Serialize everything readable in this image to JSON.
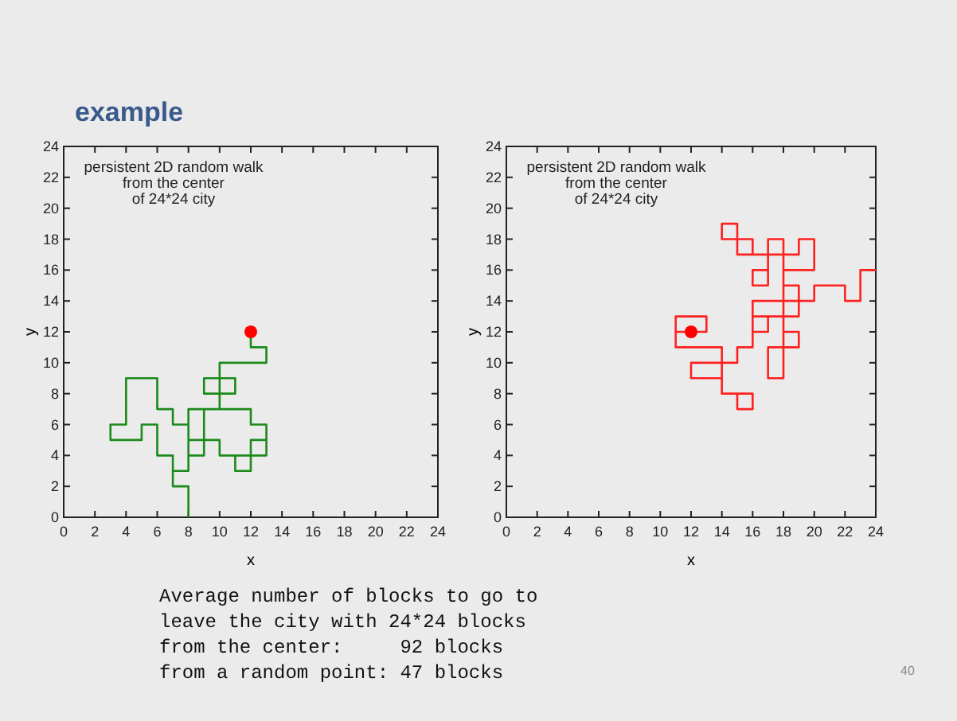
{
  "chart_data": [
    {
      "type": "line",
      "title": "example",
      "xlabel": "x",
      "ylabel": "y",
      "xlim": [
        0,
        24
      ],
      "ylim": [
        0,
        24
      ],
      "xticks": [
        0,
        2,
        4,
        6,
        8,
        10,
        12,
        14,
        16,
        18,
        20,
        22,
        24
      ],
      "yticks": [
        0,
        2,
        4,
        6,
        8,
        10,
        12,
        14,
        16,
        18,
        20,
        22,
        24
      ],
      "grid": false,
      "annotations": [
        "persistent 2D random walk\nfrom the center\nof 24*24 city",
        "Average number of blocks to go to\nleave the city with 24*24 blocks\nfrom the center:     92 blocks\nfrom a random point: 47 blocks",
        "40"
      ],
      "series": [
        {
          "color": "#1a8a1a",
          "marker": "none",
          "x": [
            12,
            12,
            13,
            13,
            10,
            10,
            11,
            11,
            9,
            9,
            10,
            10,
            12,
            12,
            13,
            13,
            12,
            12,
            13,
            12,
            12,
            11,
            11,
            12,
            12,
            10,
            10,
            8,
            8,
            10,
            9,
            9,
            8,
            8,
            7,
            7,
            6,
            6,
            5,
            5,
            3,
            3,
            4,
            4,
            6,
            6,
            7,
            7,
            8,
            8,
            7,
            7,
            8,
            8
          ],
          "values": [
            12,
            11,
            11,
            10,
            10,
            8,
            8,
            9,
            9,
            8,
            8,
            7,
            7,
            6,
            6,
            4,
            4,
            5,
            5,
            5,
            4,
            4,
            3,
            3,
            4,
            4,
            5,
            5,
            7,
            7,
            7,
            4,
            4,
            3,
            3,
            4,
            4,
            6,
            6,
            5,
            5,
            6,
            6,
            9,
            9,
            7,
            7,
            6,
            6,
            3,
            3,
            2,
            2,
            0
          ]
        },
        {
          "type": "scatter",
          "color": "#ff0000",
          "marker": "circle",
          "x": [
            12
          ],
          "values": [
            12
          ]
        }
      ]
    },
    {
      "type": "line",
      "xlabel": "x",
      "ylabel": "y",
      "xlim": [
        0,
        24
      ],
      "ylim": [
        0,
        24
      ],
      "xticks": [
        0,
        2,
        4,
        6,
        8,
        10,
        12,
        14,
        16,
        18,
        20,
        22,
        24
      ],
      "yticks": [
        0,
        2,
        4,
        6,
        8,
        10,
        12,
        14,
        16,
        18,
        20,
        22,
        24
      ],
      "grid": false,
      "annotations": [
        "persistent 2D random walk\nfrom the center\nof 24*24 city"
      ],
      "series": [
        {
          "color": "#ff2020",
          "marker": "none",
          "x": [
            12,
            11,
            11,
            13,
            13,
            11,
            11,
            14,
            14,
            12,
            12,
            14,
            14,
            15,
            15,
            16,
            16,
            14,
            14,
            15,
            15,
            16,
            16,
            18,
            18,
            16,
            16,
            17,
            17,
            19,
            19,
            18,
            18,
            19,
            19,
            17,
            17,
            18,
            18,
            19,
            19,
            20,
            20,
            18,
            18,
            17,
            17,
            16,
            16,
            17,
            17,
            15,
            15,
            14,
            14,
            15,
            15,
            16,
            16,
            18,
            18,
            19,
            19,
            20,
            20,
            22,
            22,
            23,
            23,
            24
          ],
          "values": [
            12,
            12,
            13,
            13,
            12,
            12,
            11,
            11,
            10,
            10,
            9,
            9,
            8,
            8,
            7,
            7,
            8,
            8,
            10,
            10,
            11,
            11,
            14,
            14,
            13,
            13,
            12,
            12,
            13,
            13,
            14,
            14,
            12,
            12,
            11,
            11,
            9,
            9,
            17,
            17,
            18,
            18,
            16,
            16,
            18,
            18,
            16,
            16,
            15,
            15,
            17,
            17,
            18,
            18,
            19,
            19,
            18,
            18,
            17,
            17,
            15,
            15,
            14,
            14,
            15,
            15,
            14,
            14,
            16,
            16
          ]
        },
        {
          "type": "scatter",
          "color": "#ff0000",
          "marker": "circle",
          "x": [
            12
          ],
          "values": [
            12
          ]
        }
      ]
    }
  ]
}
